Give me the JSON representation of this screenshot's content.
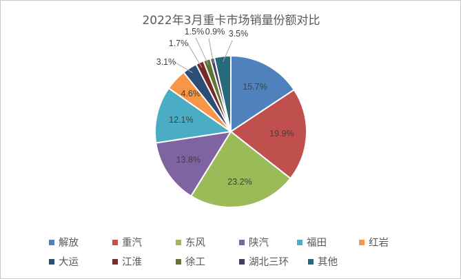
{
  "chart_data": {
    "type": "pie",
    "title": "2022年3月重卡市场销量份额对比",
    "categories": [
      "解放",
      "重汽",
      "东风",
      "陕汽",
      "福田",
      "红岩",
      "大运",
      "江淮",
      "徐工",
      "湖北三环",
      "其他"
    ],
    "values": [
      15.7,
      19.9,
      23.2,
      13.8,
      12.1,
      4.6,
      3.1,
      1.7,
      1.5,
      0.9,
      3.5
    ],
    "labels": [
      "15.7%",
      "19.9%",
      "23.2%",
      "13.8%",
      "12.1%",
      "4.6%",
      "3.1%",
      "1.7%",
      "1.5%",
      "0.9%",
      "3.5%"
    ],
    "colors": [
      "#4f81bd",
      "#c0504d",
      "#9bbb59",
      "#8064a2",
      "#4bacc6",
      "#f79646",
      "#2c4d75",
      "#772c2a",
      "#5f7530",
      "#4d3b62",
      "#276a7c"
    ],
    "legend_position": "bottom"
  }
}
